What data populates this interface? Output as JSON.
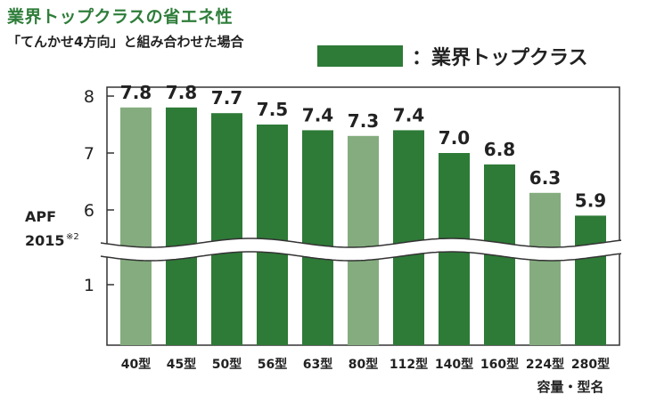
{
  "header": {
    "title": "業界トップクラスの省エネ性",
    "subtitle": "「てんかせ4方向」と組み合わせた場合"
  },
  "legend": {
    "label": "：業界トップクラス",
    "color": "#2e7a37"
  },
  "axis": {
    "ylabel_line1": "APF",
    "ylabel_line2": "2015",
    "ylabel_note": "※2",
    "xlabel": "容量・型名",
    "y_ticks_upper": [
      "8",
      "7",
      "6"
    ],
    "y_ticks_lower": [
      "1"
    ]
  },
  "colors": {
    "top_class": "#2e7a37",
    "other": "#84ac7e",
    "axis": "#333333"
  },
  "chart_data": {
    "type": "bar",
    "categories": [
      "40型",
      "45型",
      "50型",
      "56型",
      "63型",
      "80型",
      "112型",
      "140型",
      "160型",
      "224型",
      "280型"
    ],
    "values": [
      7.8,
      7.8,
      7.7,
      7.5,
      7.4,
      7.3,
      7.4,
      7.0,
      6.8,
      6.3,
      5.9
    ],
    "value_labels": [
      "7.8",
      "7.8",
      "7.7",
      "7.5",
      "7.4",
      "7.3",
      "7.4",
      "7.0",
      "6.8",
      "6.3",
      "5.9"
    ],
    "top_class": [
      false,
      true,
      true,
      true,
      true,
      false,
      true,
      true,
      true,
      false,
      true
    ],
    "y_axis_break": {
      "lower_range": [
        0,
        1
      ],
      "upper_range": [
        5.5,
        8
      ]
    },
    "grid": false,
    "legend": "top-right"
  }
}
